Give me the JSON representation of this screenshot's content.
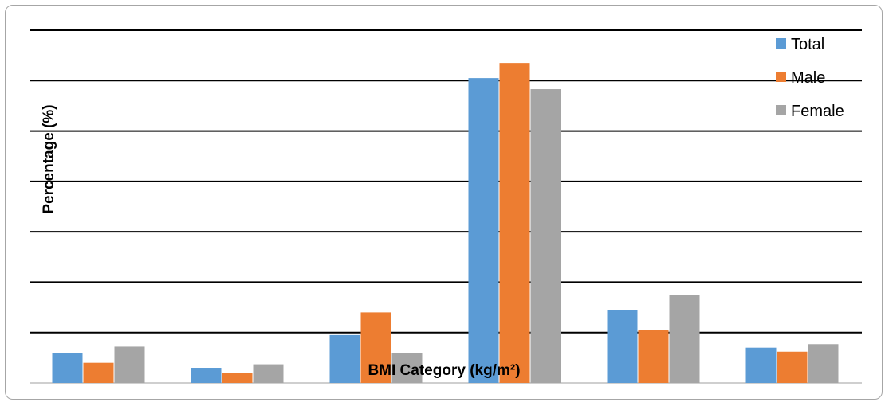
{
  "chart_data": {
    "type": "bar",
    "categories": [
      "",
      "",
      "",
      "",
      "",
      ""
    ],
    "series": [
      {
        "name": "Total",
        "color": "#5b9bd5",
        "values": [
          6,
          3,
          9.5,
          60.5,
          14.5,
          7
        ]
      },
      {
        "name": "Male",
        "color": "#ed7d31",
        "values": [
          4,
          2,
          14,
          63.5,
          10.5,
          6.2
        ]
      },
      {
        "name": "Female",
        "color": "#a5a5a5",
        "values": [
          7.2,
          3.7,
          6,
          58.3,
          17.5,
          7.7
        ]
      }
    ],
    "xlabel": "BMI Category (kg/m²)",
    "ylabel": "Percentage (%)",
    "ylim": [
      0,
      70
    ],
    "grid": true,
    "legend": "top-right"
  }
}
